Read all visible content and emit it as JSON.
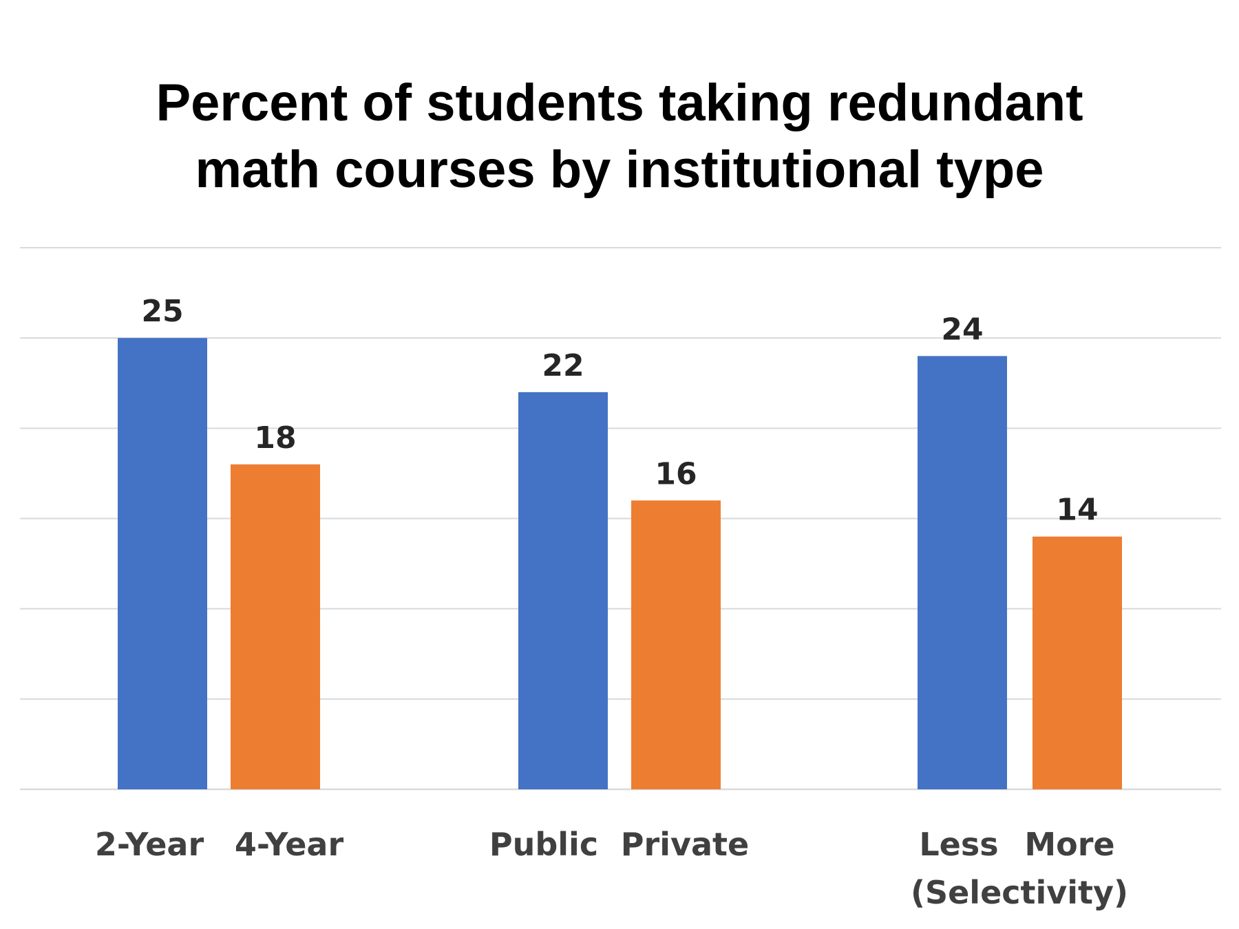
{
  "chart_data": {
    "type": "bar",
    "title": [
      "Percent of students taking redundant",
      "math courses by institutional type"
    ],
    "categories": [
      "2-Year",
      "4-Year",
      "Public",
      "Private",
      "Less",
      "More"
    ],
    "group_note": "(Selectivity)",
    "values": [
      25,
      18,
      22,
      16,
      24,
      14
    ],
    "bar_colors": [
      "#4472C4",
      "#ED7D31",
      "#4472C4",
      "#ED7D31",
      "#4472C4",
      "#ED7D31"
    ],
    "ylim": [
      0,
      30
    ],
    "gridline_step": 5,
    "grid": true,
    "y_tick_labels_shown": false,
    "legend": "none",
    "gridline_color": "#D9D9D9"
  }
}
